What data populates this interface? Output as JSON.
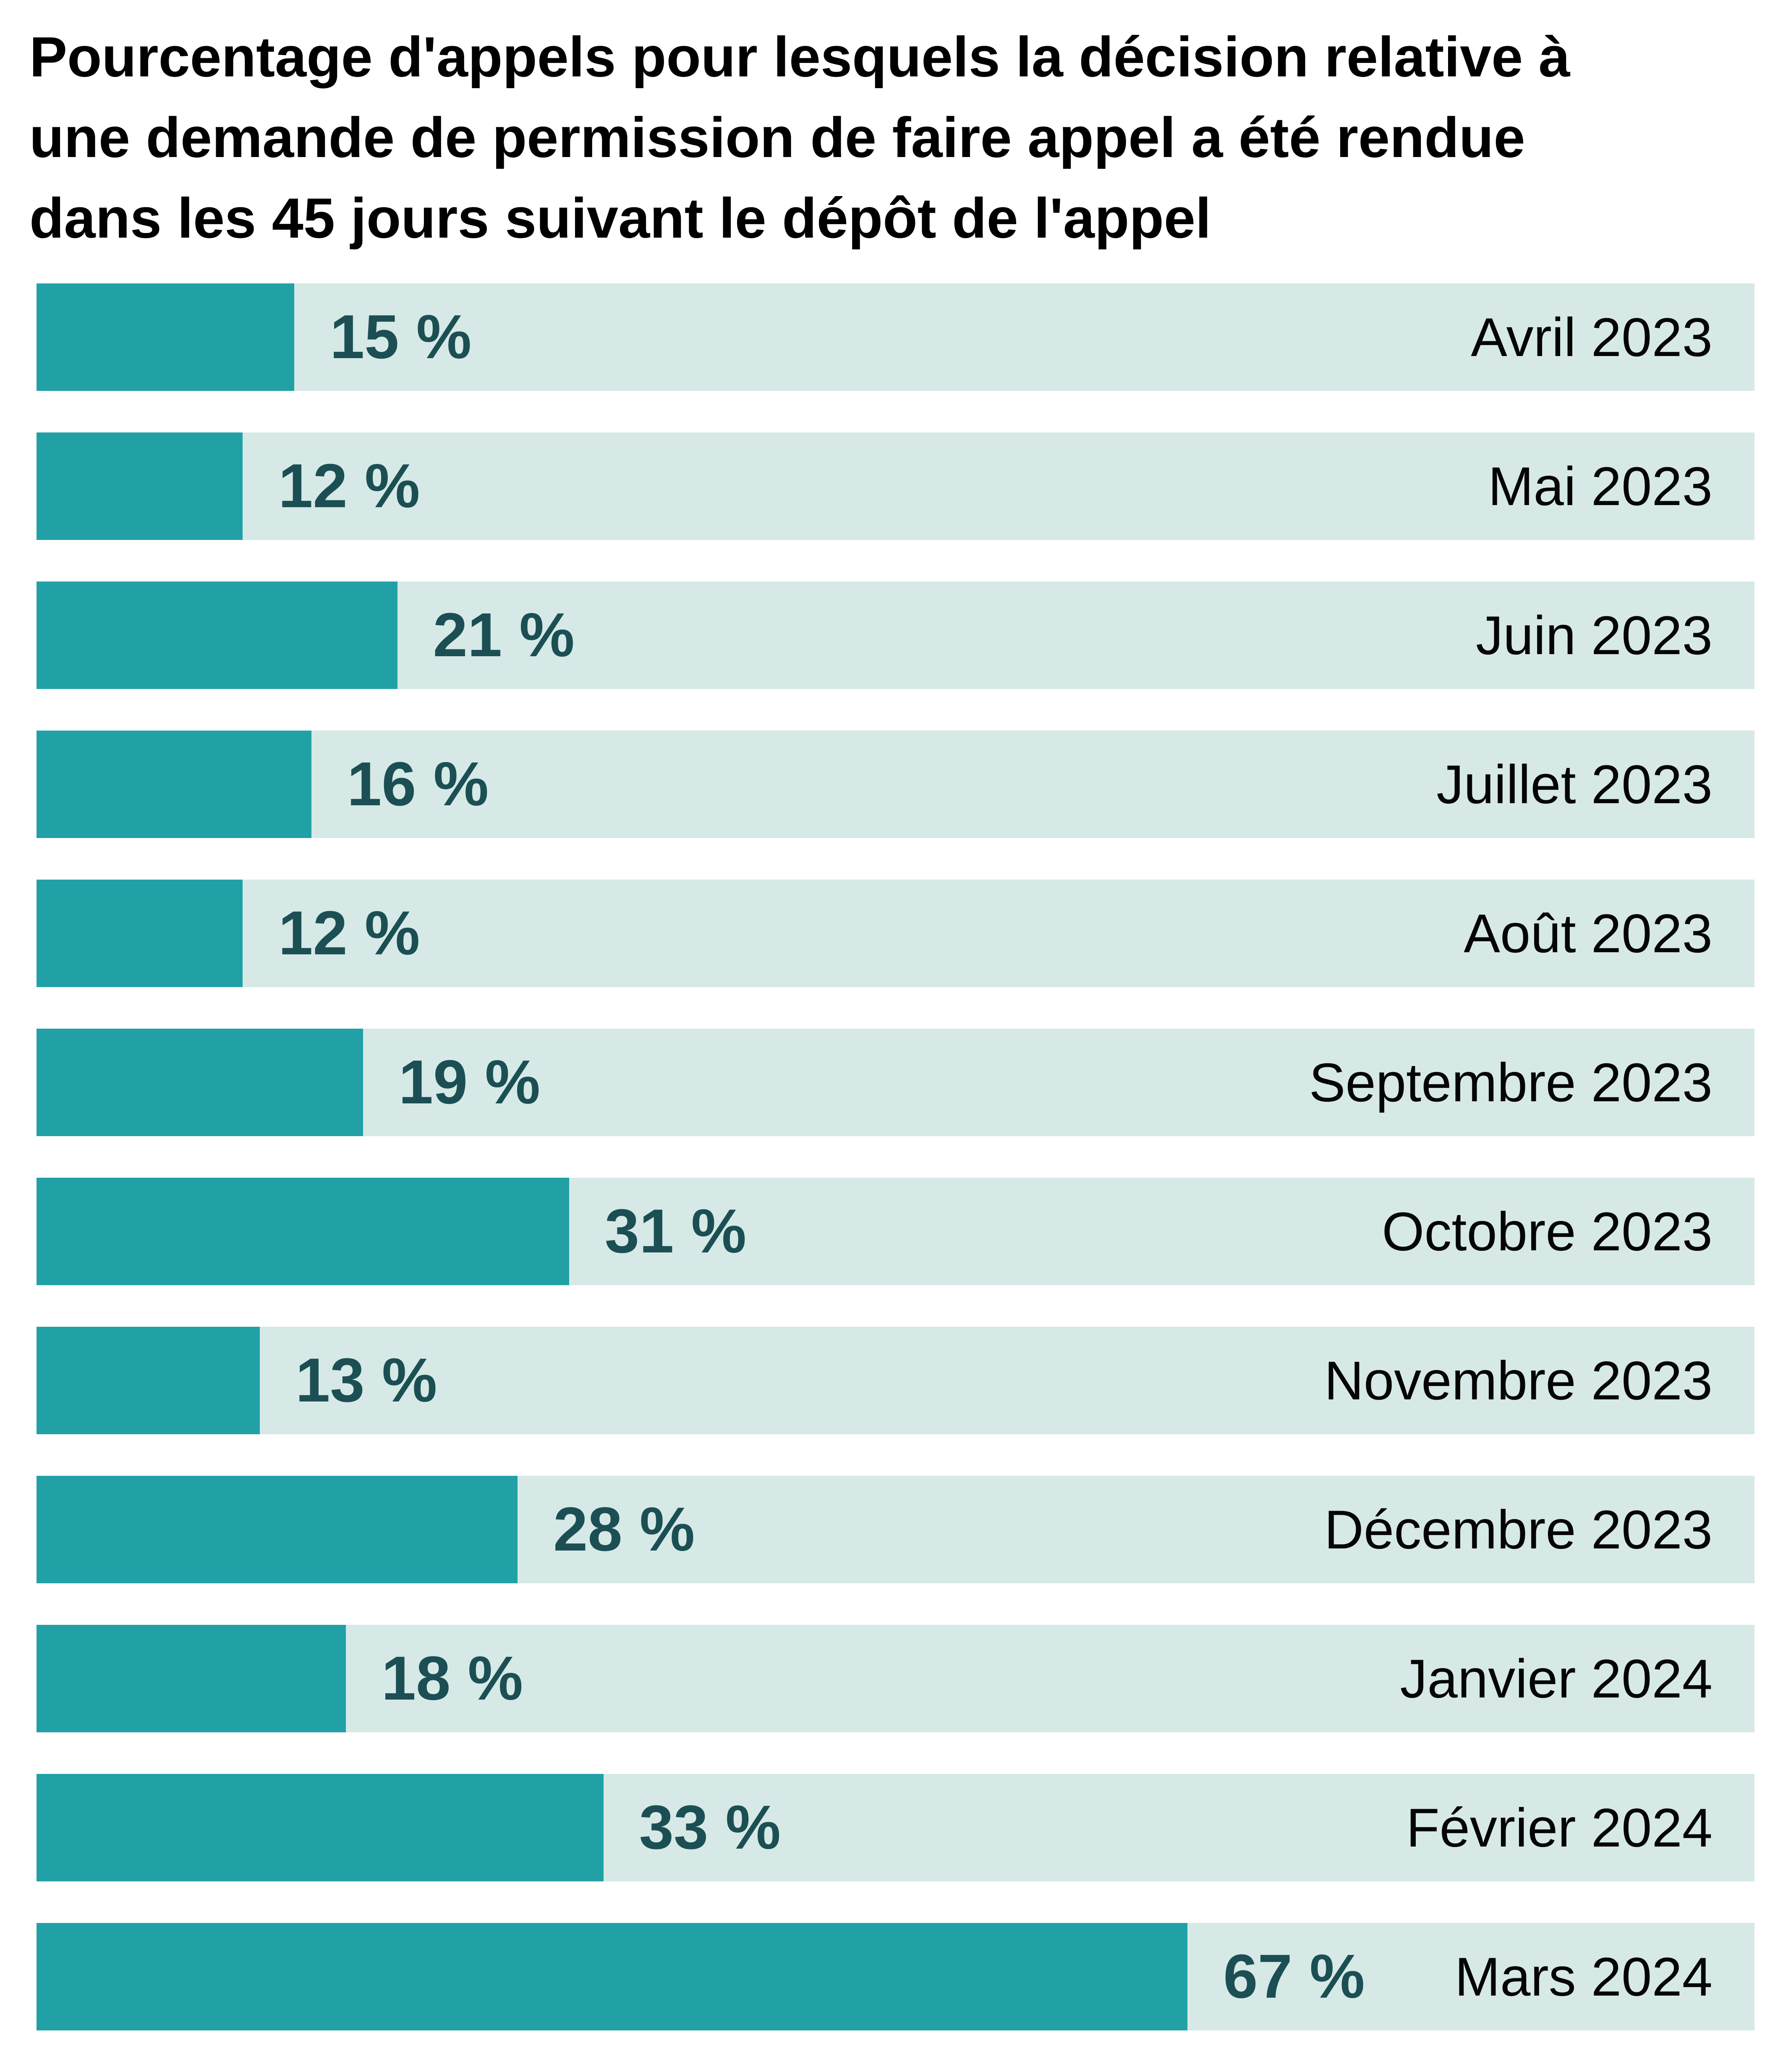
{
  "title_lines": [
    "Pourcentage d'appels pour lesquels la décision relative à",
    "une demande de permission de faire appel a été rendue",
    "dans les 45 jours suivant le dépôt de l'appel"
  ],
  "colors": {
    "bar_fill": "#21a1a6",
    "bar_track": "#d6e9e6",
    "value_text": "#1b4f54",
    "label_text": "#050505",
    "title_text": "#000000",
    "page_bg": "#ffffff"
  },
  "chart_data": {
    "type": "bar",
    "orientation": "horizontal",
    "title": "Pourcentage d'appels pour lesquels la décision relative à une demande de permission de faire appel a été rendue dans les 45 jours suivant le dépôt de l'appel",
    "categories": [
      "Avril 2023",
      "Mai 2023",
      "Juin 2023",
      "Juillet 2023",
      "Août 2023",
      "Septembre 2023",
      "Octobre 2023",
      "Novembre 2023",
      "Décembre 2023",
      "Janvier 2024",
      "Février 2024",
      "Mars 2024"
    ],
    "values": [
      15,
      12,
      21,
      16,
      12,
      19,
      31,
      13,
      28,
      18,
      33,
      67
    ],
    "value_labels": [
      "15 %",
      "12 %",
      "21 %",
      "16 %",
      "12 %",
      "19 %",
      "31 %",
      "13 %",
      "28 %",
      "18 %",
      "33 %",
      "67 %"
    ],
    "unit": "%",
    "xlim": [
      0,
      100
    ],
    "grid": false,
    "legend": false,
    "value_label_position": "right-of-bar",
    "category_label_position": "right-aligned-in-track"
  }
}
